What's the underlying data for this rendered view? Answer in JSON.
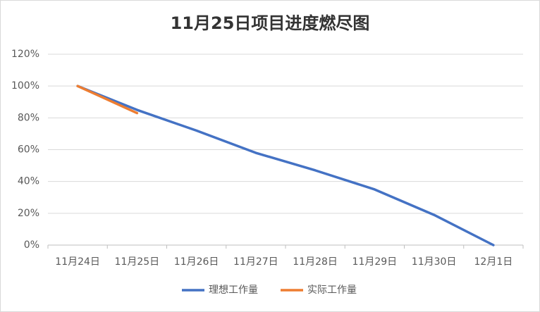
{
  "chart_data": {
    "type": "line",
    "title": "11月25日项目进度燃尽图",
    "categories": [
      "11月24日",
      "11月25日",
      "11月26日",
      "11月27日",
      "11月28日",
      "11月29日",
      "11月30日",
      "12月1日"
    ],
    "series": [
      {
        "name": "理想工作量",
        "color": "#4472c4",
        "values": [
          100,
          85,
          72,
          58,
          47,
          35,
          19,
          0
        ]
      },
      {
        "name": "实际工作量",
        "color": "#ed7d31",
        "values": [
          100,
          83,
          null,
          null,
          null,
          null,
          null,
          null
        ]
      }
    ],
    "ylim": [
      0,
      120
    ],
    "yticks": [
      {
        "value": 0,
        "label": "0%"
      },
      {
        "value": 20,
        "label": "20%"
      },
      {
        "value": 40,
        "label": "40%"
      },
      {
        "value": 60,
        "label": "60%"
      },
      {
        "value": 80,
        "label": "80%"
      },
      {
        "value": 100,
        "label": "100%"
      },
      {
        "value": 120,
        "label": "120%"
      }
    ],
    "grid": true,
    "legend": "bottom"
  }
}
